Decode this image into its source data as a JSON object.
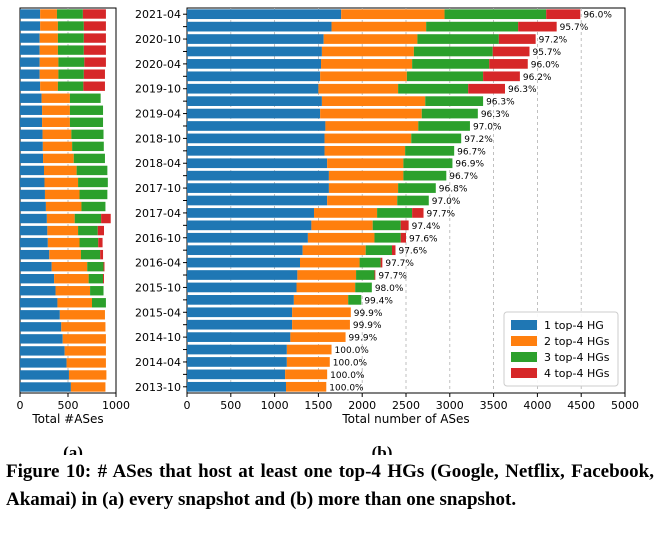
{
  "chart_data": [
    {
      "type": "bar",
      "stacked": true,
      "orientation": "horizontal",
      "subfigure": "(a)",
      "xlabel": "Total #ASes",
      "xlim": [
        0,
        1000
      ],
      "xticks": [
        "0",
        "500",
        "1000"
      ],
      "grid": true,
      "series": [
        {
          "name": "1 top-4 HG",
          "color": "#1f77b4",
          "values": [
            210,
            210,
            205,
            205,
            205,
            205,
            210,
            225,
            230,
            230,
            235,
            238,
            240,
            250,
            255,
            260,
            270,
            280,
            285,
            290,
            305,
            330,
            355,
            370,
            390,
            415,
            430,
            445,
            465,
            485,
            510,
            530
          ]
        },
        {
          "name": "2 top-4 HGs",
          "color": "#ff7f0e",
          "values": [
            175,
            185,
            190,
            190,
            195,
            195,
            185,
            295,
            290,
            290,
            300,
            305,
            320,
            340,
            350,
            360,
            370,
            290,
            320,
            330,
            330,
            370,
            360,
            360,
            360,
            470,
            460,
            450,
            430,
            410,
            390,
            360
          ]
        },
        {
          "name": "3 top-4 HGs",
          "color": "#2ca02c",
          "values": [
            270,
            270,
            270,
            270,
            270,
            265,
            265,
            320,
            345,
            345,
            335,
            330,
            325,
            320,
            310,
            290,
            250,
            275,
            205,
            195,
            200,
            170,
            150,
            140,
            145,
            0,
            0,
            0,
            0,
            0,
            0,
            0
          ]
        },
        {
          "name": "4 top-4 HGs",
          "color": "#d62728",
          "values": [
            240,
            230,
            230,
            230,
            225,
            220,
            225,
            0,
            0,
            0,
            0,
            0,
            0,
            0,
            0,
            0,
            0,
            100,
            65,
            45,
            30,
            10,
            10,
            0,
            0,
            0,
            0,
            0,
            0,
            0,
            0,
            0
          ]
        }
      ]
    },
    {
      "type": "bar",
      "stacked": true,
      "orientation": "horizontal",
      "subfigure": "(b)",
      "xlabel": "Total number of ASes",
      "xlim": [
        0,
        5000
      ],
      "xticks": [
        "0",
        "500",
        "1000",
        "1500",
        "2000",
        "2500",
        "3000",
        "3500",
        "4000",
        "4500",
        "5000"
      ],
      "categories": [
        "2021-04",
        "",
        "2020-10",
        "",
        "2020-04",
        "",
        "2019-10",
        "",
        "2019-04",
        "",
        "2018-10",
        "",
        "2018-04",
        "",
        "2017-10",
        "",
        "2017-04",
        "",
        "2016-10",
        "",
        "2016-04",
        "",
        "2015-10",
        "",
        "2015-04",
        "",
        "2014-10",
        "",
        "2014-04",
        "",
        "2013-10"
      ],
      "bar_labels": [
        "96.0%",
        "95.7%",
        "97.2%",
        "95.7%",
        "96.0%",
        "96.2%",
        "96.3%",
        "96.3%",
        "96.3%",
        "97.0%",
        "97.2%",
        "96.7%",
        "96.9%",
        "96.7%",
        "96.8%",
        "97.0%",
        "97.7%",
        "97.4%",
        "97.6%",
        "97.6%",
        "97.7%",
        "97.7%",
        "98.0%",
        "99.4%",
        "99.9%",
        "99.9%",
        "99.9%",
        "100.0%",
        "100.0%",
        "100.0%",
        "100.0%"
      ],
      "legend_position": "lower-right",
      "grid": true,
      "series": [
        {
          "name": "1 top-4 HG",
          "color": "#1f77b4",
          "values": [
            1760,
            1650,
            1560,
            1540,
            1530,
            1520,
            1500,
            1540,
            1520,
            1580,
            1570,
            1570,
            1600,
            1620,
            1620,
            1600,
            1450,
            1420,
            1380,
            1320,
            1290,
            1260,
            1250,
            1220,
            1200,
            1200,
            1180,
            1140,
            1140,
            1120,
            1130
          ]
        },
        {
          "name": "2 top-4 HGs",
          "color": "#ff7f0e",
          "values": [
            1180,
            1080,
            1070,
            1050,
            1040,
            990,
            910,
            1180,
            1160,
            1060,
            990,
            920,
            870,
            850,
            790,
            800,
            720,
            700,
            760,
            720,
            680,
            670,
            670,
            620,
            670,
            660,
            630,
            510,
            490,
            480,
            460
          ]
        },
        {
          "name": "3 top-4 HGs",
          "color": "#2ca02c",
          "values": [
            1160,
            1050,
            930,
            900,
            880,
            870,
            800,
            660,
            640,
            590,
            570,
            560,
            560,
            490,
            430,
            360,
            400,
            320,
            300,
            300,
            240,
            210,
            190,
            150,
            0,
            0,
            0,
            0,
            0,
            0,
            0
          ]
        },
        {
          "name": "4 top-4 HGs",
          "color": "#d62728",
          "values": [
            390,
            440,
            420,
            420,
            440,
            420,
            420,
            0,
            0,
            0,
            0,
            0,
            0,
            0,
            0,
            0,
            130,
            90,
            60,
            40,
            20,
            10,
            0,
            0,
            0,
            0,
            0,
            0,
            0,
            0,
            0
          ]
        }
      ]
    }
  ],
  "panel_a_label": "(a)",
  "panel_b_label": "(b)",
  "caption": "Figure 10: # ASes that host at least one top-4 HGs (Google, Netflix, Facebook, Akamai) in (a) every snapshot and (b) more than one snapshot."
}
